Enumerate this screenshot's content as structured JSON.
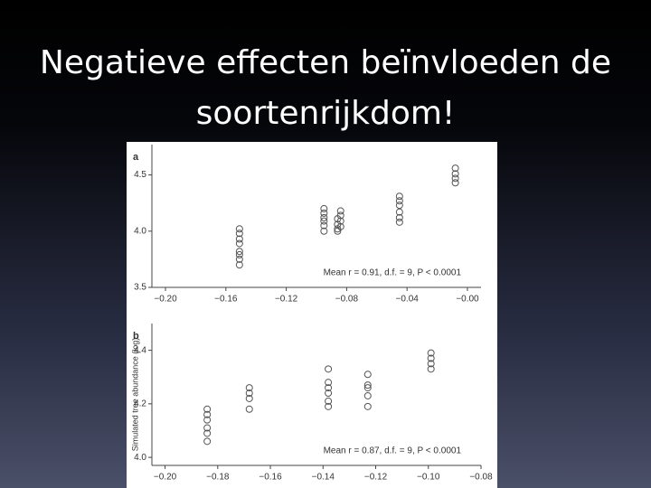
{
  "slide_title": "Negatieve effecten beïnvloeden de soortenrijkdom!",
  "chart_data": [
    {
      "type": "scatter",
      "panel_label": "a",
      "annotation": "Mean r = 0.91, d.f. = 9, P < 0.0001",
      "color": "#555555",
      "x": [
        -0.151,
        -0.151,
        -0.151,
        -0.151,
        -0.151,
        -0.151,
        -0.151,
        -0.151,
        -0.095,
        -0.095,
        -0.095,
        -0.095,
        -0.095,
        -0.095,
        -0.086,
        -0.086,
        -0.086,
        -0.086,
        -0.084,
        -0.084,
        -0.084,
        -0.084,
        -0.045,
        -0.045,
        -0.045,
        -0.045,
        -0.045,
        -0.045,
        -0.008,
        -0.008,
        -0.008,
        -0.008
      ],
      "values": [
        4.02,
        3.98,
        3.93,
        3.89,
        3.82,
        3.79,
        3.75,
        3.7,
        4.2,
        4.16,
        4.12,
        4.09,
        4.05,
        4.0,
        4.11,
        4.06,
        4.02,
        4.0,
        4.18,
        4.14,
        4.09,
        4.04,
        4.31,
        4.27,
        4.23,
        4.17,
        4.12,
        4.08,
        4.56,
        4.51,
        4.47,
        4.43
      ],
      "xlim": [
        -0.209,
        0.009
      ],
      "xticks": [
        {
          "value": -0.2,
          "label": "−0.20"
        },
        {
          "value": -0.16,
          "label": "−0.16"
        },
        {
          "value": -0.12,
          "label": "−0.12"
        },
        {
          "value": -0.08,
          "label": "−0.08"
        },
        {
          "value": -0.04,
          "label": "−0.04"
        },
        {
          "value": 0,
          "label": "−0.00"
        }
      ],
      "ylim": [
        3.5,
        4.77
      ],
      "yticks": [
        3.5,
        {
          "value": 4,
          "label": "4.0"
        },
        4.5
      ]
    },
    {
      "type": "scatter",
      "panel_label": "b",
      "ylabel": "Simulated tree abundance (log)",
      "annotation": "Mean r = 0.87, d.f. = 9, P < 0.0001",
      "color": "#555555",
      "x": [
        -0.184,
        -0.184,
        -0.184,
        -0.184,
        -0.184,
        -0.184,
        -0.168,
        -0.168,
        -0.168,
        -0.168,
        -0.138,
        -0.138,
        -0.138,
        -0.138,
        -0.138,
        -0.138,
        -0.123,
        -0.123,
        -0.123,
        -0.123,
        -0.123,
        -0.099,
        -0.099,
        -0.099,
        -0.099
      ],
      "values": [
        4.18,
        4.16,
        4.14,
        4.11,
        4.09,
        4.06,
        4.26,
        4.24,
        4.22,
        4.18,
        4.33,
        4.28,
        4.26,
        4.24,
        4.21,
        4.19,
        4.31,
        4.27,
        4.26,
        4.23,
        4.19,
        4.39,
        4.37,
        4.35,
        4.33
      ],
      "xlim": [
        -0.205,
        -0.08
      ],
      "xticks": [
        {
          "value": -0.2,
          "label": "−0.20"
        },
        {
          "value": -0.18,
          "label": "−0.18"
        },
        {
          "value": -0.16,
          "label": "−0.16"
        },
        {
          "value": -0.14,
          "label": "−0.14"
        },
        {
          "value": -0.12,
          "label": "−0.12"
        },
        {
          "value": -0.1,
          "label": "−0.10"
        },
        {
          "value": -0.08,
          "label": "−0.08"
        }
      ],
      "ylim": [
        3.97,
        4.5
      ],
      "yticks": [
        {
          "value": 4,
          "label": "4.0"
        },
        4.2,
        4.4
      ]
    }
  ]
}
